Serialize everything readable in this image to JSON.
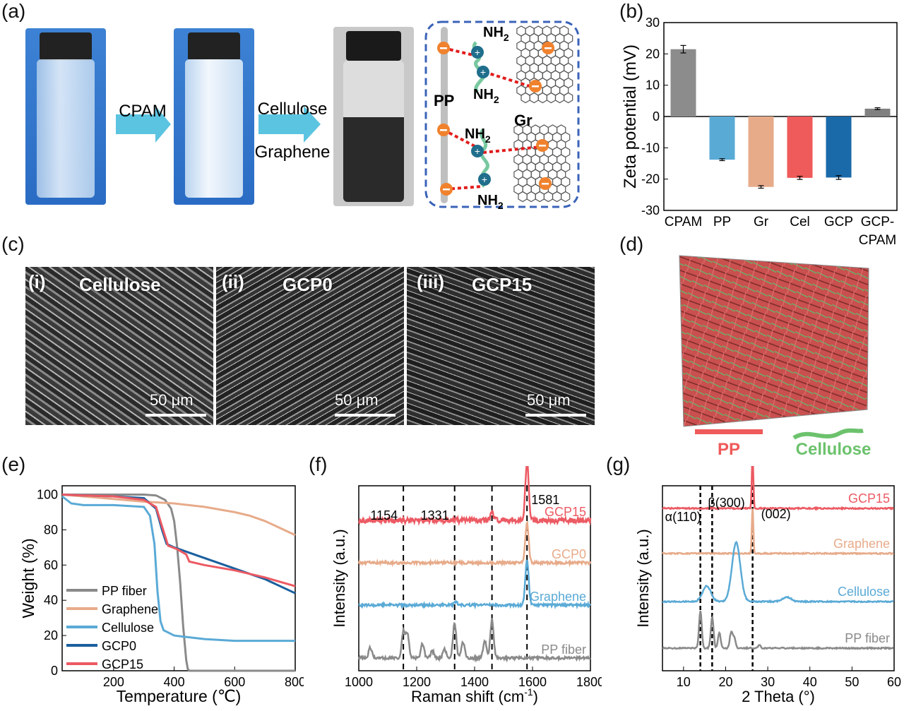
{
  "panels": {
    "a": "(a)",
    "b": "(b)",
    "c": "(c)",
    "d": "(d)",
    "e": "(e)",
    "f": "(f)",
    "g": "(g)"
  },
  "panel_a": {
    "arrow1": "CPAM",
    "arrow2_line1": "Cellulose",
    "arrow2_line2": "Graphene",
    "scheme": {
      "pp": "PP",
      "gr": "Gr",
      "nh2": "NH",
      "sub": "2"
    },
    "colors": {
      "arrow": "#5bc4e0",
      "frame": "#3a63b8",
      "neg": "#f0822e",
      "link": "#e11d1d"
    }
  },
  "panel_c": {
    "images": [
      {
        "num": "(i)",
        "title": "Cellulose",
        "scale": "50 μm"
      },
      {
        "num": "(ii)",
        "title": "GCP0",
        "scale": "50 μm"
      },
      {
        "num": "(iii)",
        "title": "GCP15",
        "scale": "50 μm"
      }
    ]
  },
  "panel_d": {
    "legend": [
      {
        "label": "PP",
        "color": "#ef5a5a"
      },
      {
        "label": "Cellulose",
        "color": "#6cc26c"
      }
    ]
  },
  "chart_data": [
    {
      "id": "b",
      "type": "bar",
      "ylabel": "Zeta potential (mV)",
      "ylim": [
        -30,
        30
      ],
      "yticks": [
        -30,
        -20,
        -10,
        0,
        10,
        20,
        30
      ],
      "categories": [
        "CPAM",
        "PP",
        "Gr",
        "Cel",
        "GCP",
        "GCP-\nCPAM"
      ],
      "category_lines": [
        [
          "CPAM"
        ],
        [
          "PP"
        ],
        [
          "Gr"
        ],
        [
          "Cel"
        ],
        [
          "GCP"
        ],
        [
          "GCP-",
          "CPAM"
        ]
      ],
      "values": [
        21.5,
        -13.8,
        -22.5,
        -19.6,
        -19.5,
        2.5
      ],
      "errors": [
        1.2,
        0.3,
        0.4,
        0.5,
        0.6,
        0.3
      ],
      "colors": [
        "#8c8c8c",
        "#5aaad6",
        "#e7ab8a",
        "#ef5a5a",
        "#1a6aaa",
        "#808080"
      ]
    },
    {
      "id": "e",
      "type": "line",
      "xlabel": "Temperature (℃)",
      "ylabel": "Weight (%)",
      "xlim": [
        30,
        800
      ],
      "ylim": [
        0,
        105
      ],
      "xticks": [
        200,
        400,
        600,
        800
      ],
      "yticks": [
        0,
        20,
        40,
        60,
        80,
        100
      ],
      "series": [
        {
          "name": "PP fiber",
          "color": "#8a8a8a",
          "x": [
            30,
            200,
            300,
            340,
            370,
            390,
            400,
            410,
            420,
            430,
            440,
            445,
            450,
            800
          ],
          "y": [
            100,
            100,
            100,
            99.5,
            97,
            92,
            85,
            70,
            50,
            25,
            6,
            1,
            0,
            0
          ]
        },
        {
          "name": "Graphene",
          "color": "#e7ab8a",
          "x": [
            30,
            100,
            200,
            300,
            400,
            500,
            600,
            650,
            700,
            750,
            800
          ],
          "y": [
            100,
            99,
            97.5,
            96,
            95,
            93,
            90,
            88,
            85,
            81,
            77
          ]
        },
        {
          "name": "Cellulose",
          "color": "#5aaad6",
          "x": [
            30,
            60,
            100,
            200,
            300,
            320,
            335,
            345,
            355,
            365,
            400,
            500,
            600,
            700,
            800
          ],
          "y": [
            99,
            95,
            94,
            94,
            93,
            88,
            72,
            45,
            28,
            23,
            20,
            18,
            17,
            17,
            17
          ]
        },
        {
          "name": "GCP0",
          "color": "#1a5f9e",
          "x": [
            30,
            100,
            200,
            300,
            340,
            360,
            375,
            400,
            450,
            500,
            550,
            600,
            650,
            700,
            750,
            800
          ],
          "y": [
            100,
            99.5,
            99,
            98,
            92,
            80,
            72,
            70,
            67,
            64,
            61,
            58,
            55,
            52,
            48,
            44
          ]
        },
        {
          "name": "GCP15",
          "color": "#ec5a63",
          "x": [
            30,
            100,
            200,
            300,
            340,
            360,
            380,
            410,
            440,
            450,
            500,
            600,
            700,
            800
          ],
          "y": [
            100,
            99.5,
            99,
            97,
            93,
            82,
            71,
            69,
            66,
            62,
            60,
            57,
            53,
            48
          ]
        }
      ]
    },
    {
      "id": "f",
      "type": "line",
      "xlabel": "Raman shift (cm",
      "xlabel_sup": "-1",
      "xlabel_end": ")",
      "ylabel": "Intensity (a.u.)",
      "xlim": [
        1000,
        1800
      ],
      "xticks": [
        1000,
        1200,
        1400,
        1600,
        1800
      ],
      "vlines": [
        1154,
        1331,
        1460,
        1581
      ],
      "annotations": [
        "1154",
        "1331",
        "1581"
      ],
      "series": [
        {
          "name": "GCP15",
          "color": "#ec5a63",
          "baseline": 78,
          "peaks": [
            [
              1460,
              4
            ],
            [
              1581,
              33
            ]
          ]
        },
        {
          "name": "GCP0",
          "color": "#e7ab8a",
          "baseline": 54,
          "peaks": [
            [
              1581,
              23
            ]
          ]
        },
        {
          "name": "Graphene",
          "color": "#5aaad6",
          "baseline": 30,
          "peaks": [
            [
              1581,
              26
            ],
            [
              1335,
              2
            ]
          ]
        },
        {
          "name": "PP fiber",
          "color": "#8a8a8a",
          "baseline": 0,
          "peaks": [
            [
              1040,
              6
            ],
            [
              1154,
              15
            ],
            [
              1168,
              14
            ],
            [
              1220,
              8
            ],
            [
              1254,
              4
            ],
            [
              1296,
              5
            ],
            [
              1331,
              20
            ],
            [
              1360,
              9
            ],
            [
              1435,
              10
            ],
            [
              1460,
              22
            ],
            [
              1581,
              0
            ]
          ]
        }
      ]
    },
    {
      "id": "g",
      "type": "line",
      "xlabel": "2 Theta (°)",
      "ylabel": "Intensity (a.u.)",
      "xlim": [
        5,
        60
      ],
      "xticks": [
        10,
        20,
        30,
        40,
        50,
        60
      ],
      "vlines": [
        14,
        16.8,
        26.4
      ],
      "annotations": [
        "α(110)",
        "β(300)",
        "(002)"
      ],
      "series": [
        {
          "name": "GCP15",
          "color": "#ec5a63",
          "baseline": 100,
          "peaks": [
            [
              26.4,
              35
            ]
          ]
        },
        {
          "name": "Graphene",
          "color": "#e7ab8a",
          "baseline": 71,
          "peaks": [
            [
              26.4,
              30
            ]
          ]
        },
        {
          "name": "Cellulose",
          "color": "#5aaad6",
          "baseline": 40,
          "peaks": [
            [
              15.5,
              10
            ],
            [
              22.5,
              38
            ],
            [
              34.5,
              3
            ]
          ]
        },
        {
          "name": "PP fiber",
          "color": "#8a8a8a",
          "baseline": 10,
          "peaks": [
            [
              14,
              24
            ],
            [
              16.8,
              20
            ],
            [
              18.5,
              10
            ],
            [
              21.3,
              10
            ],
            [
              22,
              7
            ],
            [
              28,
              2
            ]
          ]
        }
      ]
    }
  ]
}
